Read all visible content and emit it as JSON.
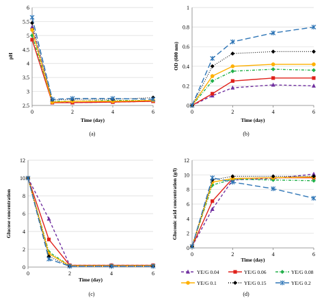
{
  "legend": [
    {
      "label": "YE/G  0.04",
      "color": "#7030a0",
      "dash": "4,3",
      "marker": "triangle"
    },
    {
      "label": "YE/G  0.06",
      "color": "#e0201a",
      "dash": "",
      "marker": "square"
    },
    {
      "label": "YE/G  0.08",
      "color": "#22b04a",
      "dash": "4,2,1,2",
      "marker": "diamond"
    },
    {
      "label": "YE/G  0.1",
      "color": "#ffb000",
      "dash": "",
      "marker": "circle"
    },
    {
      "label": "YE/G  0.15",
      "color": "#000000",
      "dash": "1,2",
      "marker": "diamond"
    },
    {
      "label": "YE/G  0.2",
      "color": "#2e75b6",
      "dash": "8,4",
      "marker": "star"
    }
  ],
  "chart_data": [
    {
      "panel": "(a)",
      "type": "line",
      "xlabel": "Time (day)",
      "ylabel": "pH",
      "xlim": [
        0,
        6
      ],
      "ylim": [
        2.5,
        6
      ],
      "xticks": [
        "0",
        "2",
        "4",
        "6"
      ],
      "yticks": [
        "2.5",
        "3",
        "3.5",
        "4",
        "4.5",
        "5",
        "5.5",
        "6"
      ],
      "x": [
        0,
        1,
        2,
        4,
        6
      ],
      "series": [
        {
          "name": "YE/G  0.04",
          "values": [
            5.3,
            2.62,
            2.6,
            2.62,
            2.65
          ]
        },
        {
          "name": "YE/G  0.06",
          "values": [
            4.85,
            2.6,
            2.6,
            2.62,
            2.65
          ]
        },
        {
          "name": "YE/G  0.08",
          "values": [
            5.0,
            2.65,
            2.65,
            2.68,
            2.68
          ]
        },
        {
          "name": "YE/G  0.1",
          "values": [
            5.2,
            2.62,
            2.65,
            2.65,
            2.68
          ]
        },
        {
          "name": "YE/G  0.15",
          "values": [
            5.45,
            2.7,
            2.72,
            2.72,
            2.78
          ]
        },
        {
          "name": "YE/G  0.2",
          "values": [
            5.65,
            2.72,
            2.75,
            2.75,
            2.72
          ]
        }
      ]
    },
    {
      "panel": "(b)",
      "type": "line",
      "xlabel": "Time (day)",
      "ylabel": "OD (600 nm)",
      "xlim": [
        0,
        6
      ],
      "ylim": [
        0,
        1
      ],
      "xticks": [
        "0",
        "2",
        "4",
        "6"
      ],
      "yticks": [
        "0",
        "0.2",
        "0.4",
        "0.6",
        "0.8",
        "1"
      ],
      "x": [
        0,
        1,
        2,
        4,
        6
      ],
      "series": [
        {
          "name": "YE/G  0.04",
          "values": [
            0.0,
            0.1,
            0.18,
            0.21,
            0.2
          ]
        },
        {
          "name": "YE/G  0.06",
          "values": [
            0.0,
            0.12,
            0.25,
            0.28,
            0.28
          ]
        },
        {
          "name": "YE/G  0.08",
          "values": [
            0.0,
            0.25,
            0.35,
            0.37,
            0.36
          ]
        },
        {
          "name": "YE/G  0.1",
          "values": [
            0.0,
            0.3,
            0.4,
            0.42,
            0.42
          ]
        },
        {
          "name": "YE/G  0.15",
          "values": [
            0.0,
            0.4,
            0.53,
            0.55,
            0.55
          ]
        },
        {
          "name": "YE/G  0.2",
          "values": [
            0.0,
            0.48,
            0.65,
            0.74,
            0.8
          ]
        }
      ]
    },
    {
      "panel": "(c)",
      "type": "line",
      "xlabel": "Time (day)",
      "ylabel": "Glucose concentration",
      "xlim": [
        0,
        6
      ],
      "ylim": [
        0,
        12
      ],
      "xticks": [
        "0",
        "2",
        "4",
        "6"
      ],
      "yticks": [
        "0",
        "2",
        "4",
        "6",
        "8",
        "10",
        "12"
      ],
      "x": [
        0,
        1,
        2,
        4,
        6
      ],
      "series": [
        {
          "name": "YE/G  0.04",
          "values": [
            10,
            5.4,
            0.2,
            0.2,
            0.2
          ]
        },
        {
          "name": "YE/G  0.06",
          "values": [
            10,
            3.1,
            0.2,
            0.2,
            0.2
          ]
        },
        {
          "name": "YE/G  0.08",
          "values": [
            10,
            1.7,
            0.15,
            0.15,
            0.15
          ]
        },
        {
          "name": "YE/G  0.1",
          "values": [
            10,
            1.5,
            0.15,
            0.15,
            0.15
          ]
        },
        {
          "name": "YE/G  0.15",
          "values": [
            10,
            1.2,
            0.1,
            0.1,
            0.1
          ]
        },
        {
          "name": "YE/G  0.2",
          "values": [
            10,
            0.9,
            0.1,
            0.1,
            0.1
          ]
        }
      ]
    },
    {
      "panel": "(d)",
      "type": "line",
      "xlabel": "Time (day)",
      "ylabel": "Gluconic   acid   concentration   (g/l)",
      "xlim": [
        0,
        6
      ],
      "ylim": [
        0,
        12
      ],
      "xticks": [
        "0",
        "2",
        "4",
        "6"
      ],
      "yticks": [
        "0",
        "2",
        "4",
        "6",
        "8",
        "10",
        "12"
      ],
      "x": [
        0,
        1,
        2,
        4,
        6
      ],
      "series": [
        {
          "name": "YE/G  0.04",
          "values": [
            0.2,
            5.3,
            9.3,
            9.5,
            10.1
          ]
        },
        {
          "name": "YE/G  0.06",
          "values": [
            0.2,
            6.4,
            9.5,
            9.6,
            9.6
          ]
        },
        {
          "name": "YE/G  0.08",
          "values": [
            0.2,
            8.6,
            9.4,
            9.3,
            9.2
          ]
        },
        {
          "name": "YE/G  0.1",
          "values": [
            0.2,
            9.0,
            9.5,
            9.6,
            9.7
          ]
        },
        {
          "name": "YE/G  0.15",
          "values": [
            0.2,
            9.3,
            9.8,
            9.8,
            9.8
          ]
        },
        {
          "name": "YE/G  0.2",
          "values": [
            0.2,
            9.6,
            9.0,
            8.1,
            6.8
          ]
        }
      ]
    }
  ]
}
